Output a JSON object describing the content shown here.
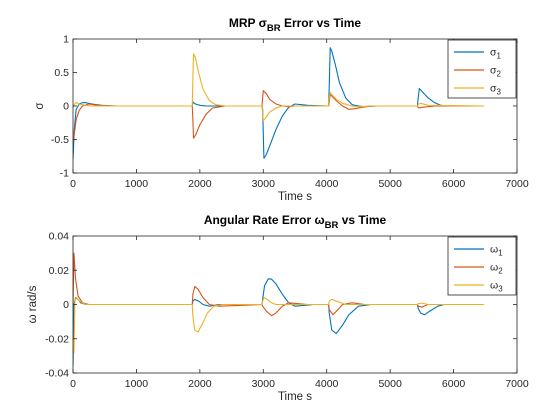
{
  "chart_data": [
    {
      "type": "line",
      "title": {
        "main": "MRP σ",
        "sub": "BR",
        "tail": " Error vs Time"
      },
      "xlabel": "Time s",
      "ylabel": "σ",
      "xlim": [
        0,
        7000
      ],
      "ylim": [
        -1,
        1
      ],
      "xticks": [
        0,
        1000,
        2000,
        3000,
        4000,
        5000,
        6000,
        7000
      ],
      "xtick_labels": [
        "0",
        "1000",
        "2000",
        "3000",
        "4000",
        "5000",
        "6000",
        "7000"
      ],
      "yticks": [
        -1,
        -0.5,
        0,
        0.5,
        1
      ],
      "ytick_labels": [
        "-1",
        "-0.5",
        "0",
        "0.5",
        "1"
      ],
      "grid": false,
      "legend_position": "top-right",
      "series": [
        {
          "name": "σ1",
          "symbol": "σ",
          "sub": "1",
          "color": "#0072BD",
          "x": [
            0,
            20,
            50,
            100,
            150,
            200,
            300,
            450,
            700,
            1000,
            1880,
            1890,
            1900,
            1930,
            2000,
            2100,
            2300,
            2980,
            2990,
            3010,
            3050,
            3120,
            3200,
            3300,
            3400,
            3500,
            3700,
            4030,
            4040,
            4055,
            4080,
            4140,
            4200,
            4300,
            4400,
            4500,
            4600,
            4800,
            5430,
            5440,
            5460,
            5480,
            5520,
            5600,
            5700,
            5800,
            5900,
            6000,
            6480
          ],
          "y": [
            -0.8,
            -0.35,
            -0.05,
            0.03,
            0.05,
            0.05,
            0.03,
            0.01,
            0.0,
            0.0,
            0.0,
            0.06,
            0.05,
            0.03,
            0.01,
            0.0,
            0.0,
            0.0,
            -0.05,
            -0.78,
            -0.72,
            -0.55,
            -0.35,
            -0.15,
            -0.02,
            0.03,
            0.01,
            0.0,
            0.3,
            0.87,
            0.82,
            0.6,
            0.35,
            0.12,
            0.02,
            0.0,
            -0.01,
            0.0,
            0.0,
            0.1,
            0.26,
            0.24,
            0.2,
            0.12,
            0.05,
            0.01,
            0.0,
            0.0,
            0.0
          ]
        },
        {
          "name": "σ2",
          "symbol": "σ",
          "sub": "2",
          "color": "#D95319",
          "x": [
            0,
            20,
            50,
            100,
            150,
            250,
            400,
            600,
            1000,
            1880,
            1890,
            1900,
            1940,
            2000,
            2100,
            2200,
            2400,
            2980,
            2990,
            3000,
            3050,
            3100,
            3200,
            3300,
            3400,
            3500,
            3700,
            4030,
            4040,
            4055,
            4080,
            4150,
            4250,
            4350,
            4450,
            4550,
            4700,
            5430,
            5440,
            5460,
            5500,
            5600,
            5700,
            6480
          ],
          "y": [
            -0.55,
            -0.42,
            -0.2,
            -0.06,
            0.0,
            0.03,
            0.01,
            0.0,
            0.0,
            0.0,
            -0.2,
            -0.48,
            -0.42,
            -0.28,
            -0.12,
            -0.03,
            0.0,
            0.0,
            0.12,
            0.23,
            0.18,
            0.1,
            0.03,
            0.0,
            -0.01,
            0.0,
            0.0,
            0.0,
            0.06,
            0.17,
            0.15,
            0.08,
            0.0,
            -0.05,
            -0.04,
            -0.02,
            0.0,
            0.0,
            -0.02,
            -0.03,
            -0.02,
            -0.01,
            0.0,
            0.0
          ]
        },
        {
          "name": "σ3",
          "symbol": "σ",
          "sub": "3",
          "color": "#EDB120",
          "x": [
            0,
            20,
            50,
            100,
            200,
            300,
            500,
            1000,
            1880,
            1890,
            1900,
            1930,
            1980,
            2050,
            2150,
            2250,
            2400,
            2980,
            2990,
            3000,
            3050,
            3100,
            3200,
            3300,
            3500,
            4030,
            4040,
            4055,
            4100,
            4150,
            4250,
            4400,
            4500,
            4700,
            5430,
            5440,
            5480,
            5600,
            6480
          ],
          "y": [
            -0.02,
            0.02,
            0.05,
            0.03,
            0.01,
            0.0,
            0.0,
            0.0,
            0.0,
            0.4,
            0.78,
            0.72,
            0.5,
            0.25,
            0.08,
            0.02,
            0.0,
            0.0,
            -0.1,
            -0.22,
            -0.16,
            -0.09,
            -0.03,
            0.0,
            0.0,
            0.0,
            0.12,
            0.2,
            0.15,
            0.1,
            0.04,
            0.0,
            -0.01,
            0.0,
            0.0,
            0.02,
            0.04,
            0.01,
            0.0
          ]
        }
      ]
    },
    {
      "type": "line",
      "title": {
        "main": "Angular Rate Error ω",
        "sub": "BR",
        "tail": " vs Time"
      },
      "xlabel": "Time s",
      "ylabel": "ω rad/s",
      "xlim": [
        0,
        7000
      ],
      "ylim": [
        -0.04,
        0.04
      ],
      "xticks": [
        0,
        1000,
        2000,
        3000,
        4000,
        5000,
        6000,
        7000
      ],
      "xtick_labels": [
        "0",
        "1000",
        "2000",
        "3000",
        "4000",
        "5000",
        "6000",
        "7000"
      ],
      "yticks": [
        -0.04,
        -0.02,
        0,
        0.02,
        0.04
      ],
      "ytick_labels": [
        "-0.04",
        "-0.02",
        "0",
        "0.02",
        "0.04"
      ],
      "grid": false,
      "legend_position": "top-right",
      "series": [
        {
          "name": "ω1",
          "symbol": "ω",
          "sub": "1",
          "color": "#0072BD",
          "x": [
            0,
            15,
            40,
            80,
            120,
            200,
            300,
            500,
            1000,
            1880,
            1890,
            1920,
            1980,
            2050,
            2150,
            2300,
            2980,
            2990,
            3020,
            3080,
            3130,
            3200,
            3300,
            3400,
            3500,
            3650,
            3800,
            4030,
            4040,
            4080,
            4150,
            4250,
            4350,
            4500,
            4700,
            5430,
            5440,
            5480,
            5540,
            5620,
            5750,
            5850,
            6480
          ],
          "y": [
            -0.036,
            0.0,
            0.004,
            0.003,
            0.001,
            0.0,
            0.0,
            0.0,
            0.0,
            0.0,
            0.002,
            0.003,
            0.002,
            0.0,
            -0.001,
            0.0,
            0.0,
            0.003,
            0.011,
            0.015,
            0.0148,
            0.012,
            0.006,
            0.001,
            -0.001,
            -0.0005,
            0.0,
            0.0,
            -0.005,
            -0.015,
            -0.017,
            -0.012,
            -0.006,
            -0.001,
            0.0,
            0.0,
            -0.002,
            -0.005,
            -0.006,
            -0.004,
            -0.001,
            0.0,
            0.0
          ]
        },
        {
          "name": "ω2",
          "symbol": "ω",
          "sub": "2",
          "color": "#D95319",
          "x": [
            0,
            15,
            40,
            80,
            150,
            250,
            400,
            700,
            1880,
            1890,
            1920,
            1970,
            2050,
            2150,
            2300,
            2980,
            2990,
            3050,
            3130,
            3200,
            3300,
            3400,
            3550,
            3700,
            4030,
            4040,
            4100,
            4150,
            4250,
            4400,
            4600,
            5430,
            5440,
            5500,
            5600,
            6480
          ],
          "y": [
            0.0,
            0.03,
            0.015,
            0.005,
            0.001,
            0.0,
            0.0,
            0.0,
            0.0,
            0.006,
            0.0105,
            0.009,
            0.004,
            0.0,
            -0.001,
            0.0,
            -0.001,
            -0.004,
            -0.0065,
            -0.005,
            -0.001,
            0.001,
            0.0005,
            0.0,
            0.0,
            -0.003,
            -0.006,
            -0.004,
            0.0,
            0.001,
            0.0,
            0.0,
            -0.001,
            -0.0015,
            0.0,
            0.0
          ]
        },
        {
          "name": "ω3",
          "symbol": "ω",
          "sub": "3",
          "color": "#EDB120",
          "x": [
            0,
            15,
            30,
            60,
            100,
            200,
            400,
            700,
            1880,
            1890,
            1920,
            1970,
            2030,
            2120,
            2220,
            2350,
            2500,
            2980,
            2990,
            3010,
            3060,
            3130,
            3200,
            3300,
            4030,
            4040,
            4080,
            4150,
            4300,
            4500,
            5430,
            5440,
            5500,
            5600,
            6480
          ],
          "y": [
            -0.02,
            -0.028,
            0.003,
            0.004,
            0.002,
            0.0,
            0.0,
            0.0,
            0.0,
            -0.007,
            -0.015,
            -0.016,
            -0.012,
            -0.005,
            -0.001,
            0.0,
            0.0,
            0.0,
            0.002,
            0.004,
            0.003,
            0.001,
            0.0,
            0.0,
            0.0,
            0.002,
            0.003,
            0.002,
            0.0,
            0.0,
            0.0,
            0.0005,
            0.0008,
            0.0,
            0.0
          ]
        }
      ]
    }
  ]
}
